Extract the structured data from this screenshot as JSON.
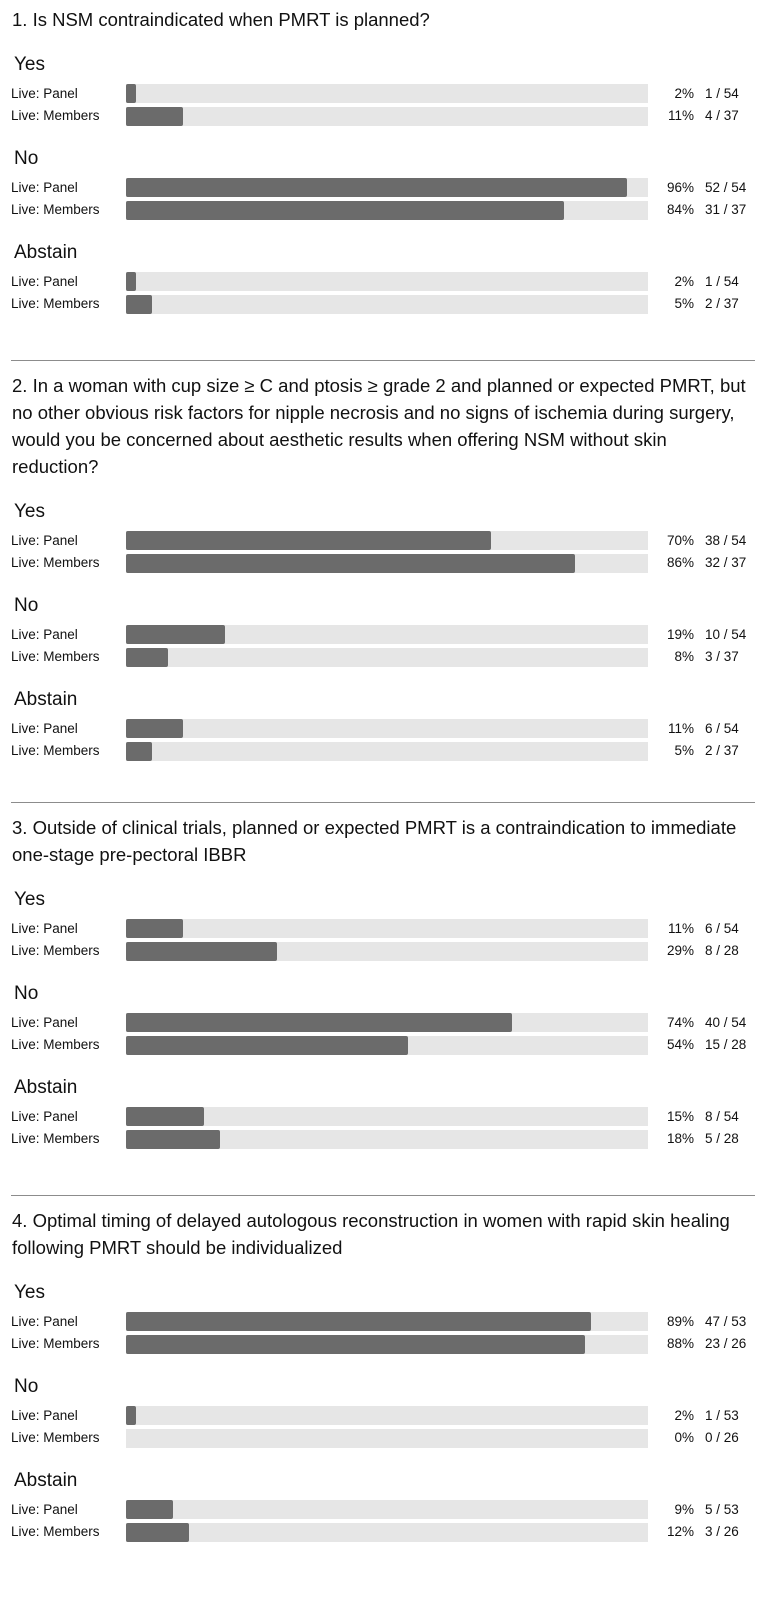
{
  "chart_data": {
    "type": "bar",
    "orientation": "horizontal",
    "xlim": [
      0,
      100
    ],
    "colors": {
      "bar": "#6b6b6b",
      "track": "#e6e6e6",
      "divider": "#8c8c8c"
    },
    "questions": [
      {
        "title": "1. Is NSM contraindicated when PMRT is planned?",
        "options": [
          {
            "label": "Yes",
            "rows": [
              {
                "group": "Live: Panel",
                "percent": 2,
                "percent_label": "2%",
                "fraction": "1 / 54"
              },
              {
                "group": "Live: Members",
                "percent": 11,
                "percent_label": "11%",
                "fraction": "4 / 37"
              }
            ]
          },
          {
            "label": "No",
            "rows": [
              {
                "group": "Live: Panel",
                "percent": 96,
                "percent_label": "96%",
                "fraction": "52 / 54"
              },
              {
                "group": "Live: Members",
                "percent": 84,
                "percent_label": "84%",
                "fraction": "31 / 37"
              }
            ]
          },
          {
            "label": "Abstain",
            "rows": [
              {
                "group": "Live: Panel",
                "percent": 2,
                "percent_label": "2%",
                "fraction": "1 / 54"
              },
              {
                "group": "Live: Members",
                "percent": 5,
                "percent_label": "5%",
                "fraction": "2 / 37"
              }
            ]
          }
        ]
      },
      {
        "title": "2. In a woman with cup size ≥ C and ptosis ≥ grade 2 and planned or expected PMRT, but no other obvious risk factors for nipple necrosis and no signs of ischemia during surgery, would you be concerned about aesthetic results when offering NSM without skin reduction?",
        "options": [
          {
            "label": "Yes",
            "rows": [
              {
                "group": "Live: Panel",
                "percent": 70,
                "percent_label": "70%",
                "fraction": "38 / 54"
              },
              {
                "group": "Live: Members",
                "percent": 86,
                "percent_label": "86%",
                "fraction": "32 / 37"
              }
            ]
          },
          {
            "label": "No",
            "rows": [
              {
                "group": "Live: Panel",
                "percent": 19,
                "percent_label": "19%",
                "fraction": "10 / 54"
              },
              {
                "group": "Live: Members",
                "percent": 8,
                "percent_label": "8%",
                "fraction": "3 / 37"
              }
            ]
          },
          {
            "label": "Abstain",
            "rows": [
              {
                "group": "Live: Panel",
                "percent": 11,
                "percent_label": "11%",
                "fraction": "6 / 54"
              },
              {
                "group": "Live: Members",
                "percent": 5,
                "percent_label": "5%",
                "fraction": "2 / 37"
              }
            ]
          }
        ]
      },
      {
        "title": "3. Outside of clinical trials, planned or expected PMRT is a contraindication to immediate one-stage pre-pectoral IBBR",
        "options": [
          {
            "label": "Yes",
            "rows": [
              {
                "group": "Live: Panel",
                "percent": 11,
                "percent_label": "11%",
                "fraction": "6 / 54"
              },
              {
                "group": "Live: Members",
                "percent": 29,
                "percent_label": "29%",
                "fraction": "8 / 28"
              }
            ]
          },
          {
            "label": "No",
            "rows": [
              {
                "group": "Live: Panel",
                "percent": 74,
                "percent_label": "74%",
                "fraction": "40 / 54"
              },
              {
                "group": "Live: Members",
                "percent": 54,
                "percent_label": "54%",
                "fraction": "15 / 28"
              }
            ]
          },
          {
            "label": "Abstain",
            "rows": [
              {
                "group": "Live: Panel",
                "percent": 15,
                "percent_label": "15%",
                "fraction": "8 / 54"
              },
              {
                "group": "Live: Members",
                "percent": 18,
                "percent_label": "18%",
                "fraction": "5 / 28"
              }
            ]
          }
        ]
      },
      {
        "title": "4. Optimal timing of delayed autologous reconstruction in women with rapid skin healing following PMRT should be individualized",
        "options": [
          {
            "label": "Yes",
            "rows": [
              {
                "group": "Live: Panel",
                "percent": 89,
                "percent_label": "89%",
                "fraction": "47 / 53"
              },
              {
                "group": "Live: Members",
                "percent": 88,
                "percent_label": "88%",
                "fraction": "23 / 26"
              }
            ]
          },
          {
            "label": "No",
            "rows": [
              {
                "group": "Live: Panel",
                "percent": 2,
                "percent_label": "2%",
                "fraction": "1 / 53"
              },
              {
                "group": "Live: Members",
                "percent": 0,
                "percent_label": "0%",
                "fraction": "0 / 26"
              }
            ]
          },
          {
            "label": "Abstain",
            "rows": [
              {
                "group": "Live: Panel",
                "percent": 9,
                "percent_label": "9%",
                "fraction": "5 / 53"
              },
              {
                "group": "Live: Members",
                "percent": 12,
                "percent_label": "12%",
                "fraction": "3 / 26"
              }
            ]
          }
        ]
      }
    ]
  }
}
